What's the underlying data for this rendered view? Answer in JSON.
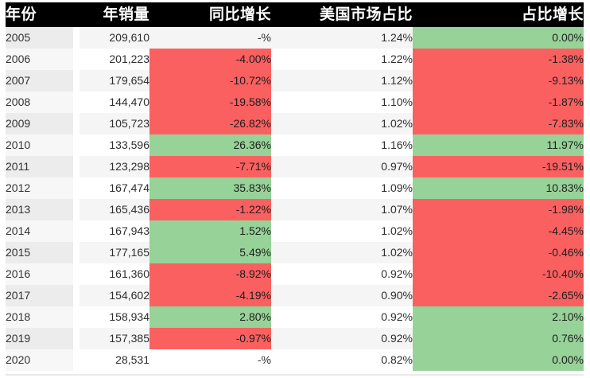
{
  "colors": {
    "positive_bg": "#97d298",
    "negative_bg": "#fa6060",
    "header_bg": "#000000",
    "header_text": "#ffffff",
    "odd_row_bg": "#f5f5f5",
    "even_row_bg": "#ffffff"
  },
  "chart_data": {
    "type": "table",
    "title": "",
    "columns": [
      "年份",
      "年销量",
      "同比增长",
      "美国市场占比",
      "占比增长"
    ],
    "layout": {
      "header_style": "black-bar-white-text",
      "row_striping": "alternating-gray-white",
      "conditional_formatting": "green=positive, red=negative, none=no-change"
    },
    "rows": [
      {
        "year": "2005",
        "sales": "209,610",
        "yoy": "-%",
        "yoy_state": "none",
        "share": "1.24%",
        "share_growth": "0.00%",
        "share_state": "pos"
      },
      {
        "year": "2006",
        "sales": "201,223",
        "yoy": "-4.00%",
        "yoy_state": "neg",
        "share": "1.22%",
        "share_growth": "-1.38%",
        "share_state": "neg"
      },
      {
        "year": "2007",
        "sales": "179,654",
        "yoy": "-10.72%",
        "yoy_state": "neg",
        "share": "1.12%",
        "share_growth": "-9.13%",
        "share_state": "neg"
      },
      {
        "year": "2008",
        "sales": "144,470",
        "yoy": "-19.58%",
        "yoy_state": "neg",
        "share": "1.10%",
        "share_growth": "-1.87%",
        "share_state": "neg"
      },
      {
        "year": "2009",
        "sales": "105,723",
        "yoy": "-26.82%",
        "yoy_state": "neg",
        "share": "1.02%",
        "share_growth": "-7.83%",
        "share_state": "neg"
      },
      {
        "year": "2010",
        "sales": "133,596",
        "yoy": "26.36%",
        "yoy_state": "pos",
        "share": "1.16%",
        "share_growth": "11.97%",
        "share_state": "pos"
      },
      {
        "year": "2011",
        "sales": "123,298",
        "yoy": "-7.71%",
        "yoy_state": "neg",
        "share": "0.97%",
        "share_growth": "-19.51%",
        "share_state": "neg"
      },
      {
        "year": "2012",
        "sales": "167,474",
        "yoy": "35.83%",
        "yoy_state": "pos",
        "share": "1.09%",
        "share_growth": "10.83%",
        "share_state": "pos"
      },
      {
        "year": "2013",
        "sales": "165,436",
        "yoy": "-1.22%",
        "yoy_state": "neg",
        "share": "1.07%",
        "share_growth": "-1.98%",
        "share_state": "neg"
      },
      {
        "year": "2014",
        "sales": "167,943",
        "yoy": "1.52%",
        "yoy_state": "pos",
        "share": "1.02%",
        "share_growth": "-4.45%",
        "share_state": "neg"
      },
      {
        "year": "2015",
        "sales": "177,165",
        "yoy": "5.49%",
        "yoy_state": "pos",
        "share": "1.02%",
        "share_growth": "-0.46%",
        "share_state": "neg"
      },
      {
        "year": "2016",
        "sales": "161,360",
        "yoy": "-8.92%",
        "yoy_state": "neg",
        "share": "0.92%",
        "share_growth": "-10.40%",
        "share_state": "neg"
      },
      {
        "year": "2017",
        "sales": "154,602",
        "yoy": "-4.19%",
        "yoy_state": "neg",
        "share": "0.90%",
        "share_growth": "-2.65%",
        "share_state": "neg"
      },
      {
        "year": "2018",
        "sales": "158,934",
        "yoy": "2.80%",
        "yoy_state": "pos",
        "share": "0.92%",
        "share_growth": "2.10%",
        "share_state": "pos"
      },
      {
        "year": "2019",
        "sales": "157,385",
        "yoy": "-0.97%",
        "yoy_state": "neg",
        "share": "0.92%",
        "share_growth": "0.76%",
        "share_state": "pos"
      },
      {
        "year": "2020",
        "sales": "28,531",
        "yoy": "-%",
        "yoy_state": "none",
        "share": "0.82%",
        "share_growth": "0.00%",
        "share_state": "pos"
      }
    ]
  }
}
